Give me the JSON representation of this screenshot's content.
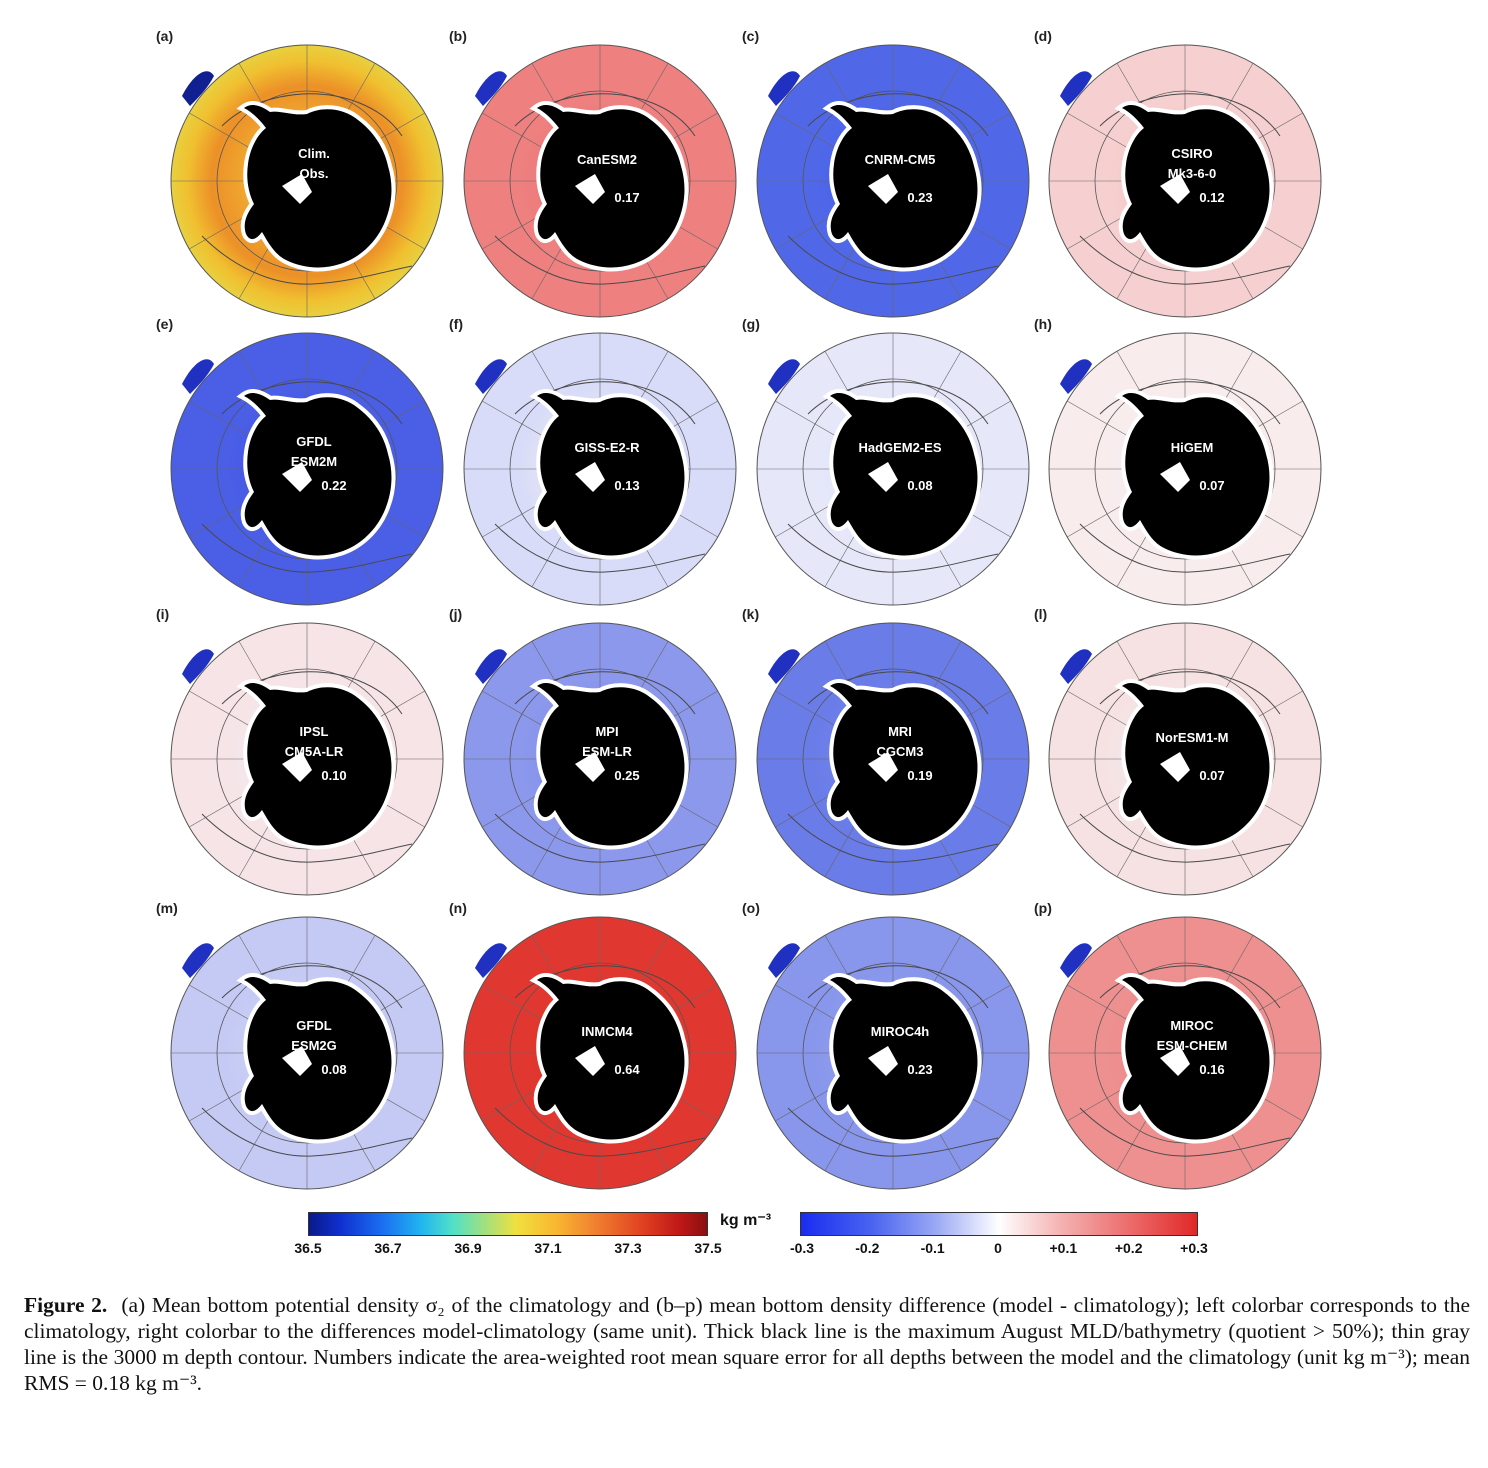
{
  "panels": [
    {
      "letter": "(a)",
      "label": [
        "Clim.",
        "Obs."
      ],
      "rms": "",
      "fill": "#f0a020",
      "inner": "#f4c030",
      "style": "clim"
    },
    {
      "letter": "(b)",
      "label": [
        "CanESM2"
      ],
      "rms": "0.17",
      "fill": "#ee8080",
      "inner": "#ec7070",
      "style": "diff"
    },
    {
      "letter": "(c)",
      "label": [
        "CNRM-CM5"
      ],
      "rms": "0.23",
      "fill": "#5068e8",
      "inner": "#4058e4",
      "style": "diff"
    },
    {
      "letter": "(d)",
      "label": [
        "CSIRO",
        "Mk3-6-0"
      ],
      "rms": "0.12",
      "fill": "#f6d0d0",
      "inner": "#f2c0c0",
      "style": "diff"
    },
    {
      "letter": "(e)",
      "label": [
        "GFDL",
        "ESM2M"
      ],
      "rms": "0.22",
      "fill": "#4a5ee6",
      "inner": "#3c50e0",
      "style": "diff"
    },
    {
      "letter": "(f)",
      "label": [
        "GISS-E2-R"
      ],
      "rms": "0.13",
      "fill": "#d8dcf8",
      "inner": "#f6f0f0",
      "style": "diff"
    },
    {
      "letter": "(g)",
      "label": [
        "HadGEM2-ES"
      ],
      "rms": "0.08",
      "fill": "#e6e8fa",
      "inner": "#dde0f8",
      "style": "diff"
    },
    {
      "letter": "(h)",
      "label": [
        "HiGEM"
      ],
      "rms": "0.07",
      "fill": "#f8ecec",
      "inner": "#f2f2fa",
      "style": "diff"
    },
    {
      "letter": "(i)",
      "label": [
        "IPSL",
        "CM5A-LR"
      ],
      "rms": "0.10",
      "fill": "#f6e4e6",
      "inner": "#eef0fa",
      "style": "diff"
    },
    {
      "letter": "(j)",
      "label": [
        "MPI",
        "ESM-LR"
      ],
      "rms": "0.25",
      "fill": "#8c98ec",
      "inner": "#7c8aea",
      "style": "diff"
    },
    {
      "letter": "(k)",
      "label": [
        "MRI",
        "CGCM3"
      ],
      "rms": "0.19",
      "fill": "#6a7ce8",
      "inner": "#7a8aea",
      "style": "diff"
    },
    {
      "letter": "(l)",
      "label": [
        "NorESM1-M"
      ],
      "rms": "0.07",
      "fill": "#f6e2e2",
      "inner": "#f0f0fa",
      "style": "diff"
    },
    {
      "letter": "(m)",
      "label": [
        "GFDL",
        "ESM2G"
      ],
      "rms": "0.08",
      "fill": "#c4caf4",
      "inner": "#d4d8f6",
      "style": "diff"
    },
    {
      "letter": "(n)",
      "label": [
        "INMCM4"
      ],
      "rms": "0.64",
      "fill": "#e03830",
      "inner": "#dc3028",
      "style": "diff"
    },
    {
      "letter": "(o)",
      "label": [
        "MIROC4h"
      ],
      "rms": "0.23",
      "fill": "#8896ec",
      "inner": "#9aa6ee",
      "style": "diff"
    },
    {
      "letter": "(p)",
      "label": [
        "MIROC",
        "ESM-CHEM"
      ],
      "rms": "0.16",
      "fill": "#ee9090",
      "inner": "#ec8282",
      "style": "diff"
    }
  ],
  "colorbars": {
    "left_ticks": [
      "36.5",
      "36.7",
      "36.9",
      "37.1",
      "37.3",
      "37.5"
    ],
    "unit": "kg m⁻³",
    "right_ticks": [
      "-0.3",
      "-0.2",
      "-0.1",
      "0",
      "+0.1",
      "+0.2",
      "+0.3"
    ]
  },
  "caption": {
    "label": "Figure 2.",
    "text": "(a) Mean bottom potential density σ₂ of the climatology and (b–p) mean bottom density difference (model - climatology); left colorbar corresponds to the climatology, right colorbar to the differences model-climatology (same unit). Thick black line is the maximum August MLD/bathymetry (quotient > 50%); thin gray line is the 3000 m depth contour. Numbers indicate the area-weighted root mean square error for all depths between the model and the climatology (unit kg m⁻³); mean RMS = 0.18 kg m⁻³."
  }
}
